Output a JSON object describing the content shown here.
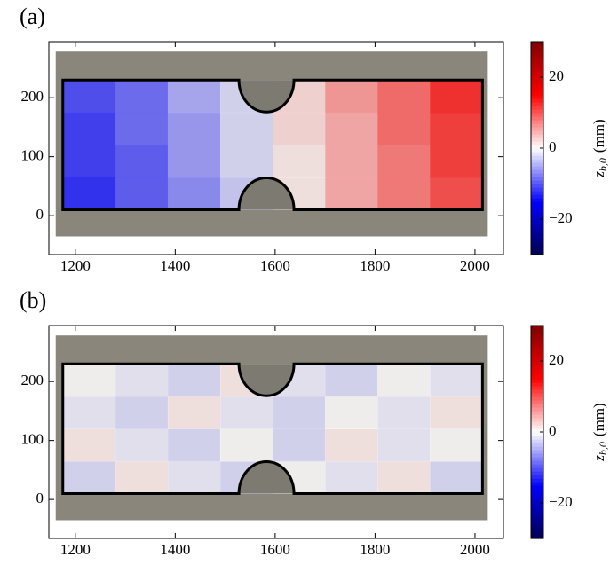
{
  "chart_data": [
    {
      "type": "heatmap",
      "panel_label": "(a)",
      "xlim": [
        1147,
        2057
      ],
      "ylim": [
        -66,
        295
      ],
      "xticks": [
        1200,
        1400,
        1600,
        1800,
        2000
      ],
      "yticks": [
        0,
        100,
        200
      ],
      "x_edges": [
        1175,
        1280,
        1385,
        1490,
        1595,
        1700,
        1805,
        1910,
        2015
      ],
      "y_edges": [
        10,
        65,
        120,
        175,
        230
      ],
      "z": [
        [
          -13,
          -10,
          -7,
          -3,
          1,
          5,
          8,
          11
        ],
        [
          -12,
          -10,
          -6,
          -2,
          1,
          5,
          8,
          12
        ],
        [
          -12,
          -9,
          -6,
          -2,
          2,
          5,
          9,
          12
        ],
        [
          -11,
          -9,
          -5,
          -2,
          2,
          6,
          9,
          13
        ]
      ],
      "clim": [
        -30,
        30
      ],
      "cticks": [
        {
          "value": -20,
          "label": "−20"
        },
        0,
        20
      ],
      "colorbar_symbol": "z",
      "colorbar_subscript": "b,0",
      "colorbar_unit": "(mm)"
    },
    {
      "type": "heatmap",
      "panel_label": "(b)",
      "xlim": [
        1147,
        2057
      ],
      "ylim": [
        -66,
        295
      ],
      "xticks": [
        1200,
        1400,
        1600,
        1800,
        2000
      ],
      "yticks": [
        0,
        100,
        200
      ],
      "x_edges": [
        1175,
        1280,
        1385,
        1490,
        1595,
        1700,
        1805,
        1910,
        2015
      ],
      "y_edges": [
        10,
        65,
        120,
        175,
        230
      ],
      "z": [
        [
          -2,
          1,
          -1,
          -2,
          0,
          -1,
          1,
          -2
        ],
        [
          1,
          -1,
          -2,
          0,
          -2,
          1,
          -1,
          0
        ],
        [
          -1,
          -2,
          1,
          -1,
          -2,
          0,
          -1,
          1
        ],
        [
          0,
          -1,
          -2,
          1,
          -1,
          -2,
          0,
          -1
        ]
      ],
      "clim": [
        -30,
        30
      ],
      "cticks": [
        {
          "value": -20,
          "label": "−20"
        },
        0,
        20
      ],
      "colorbar_symbol": "z",
      "colorbar_subscript": "b,0",
      "colorbar_unit": "(mm)"
    }
  ]
}
